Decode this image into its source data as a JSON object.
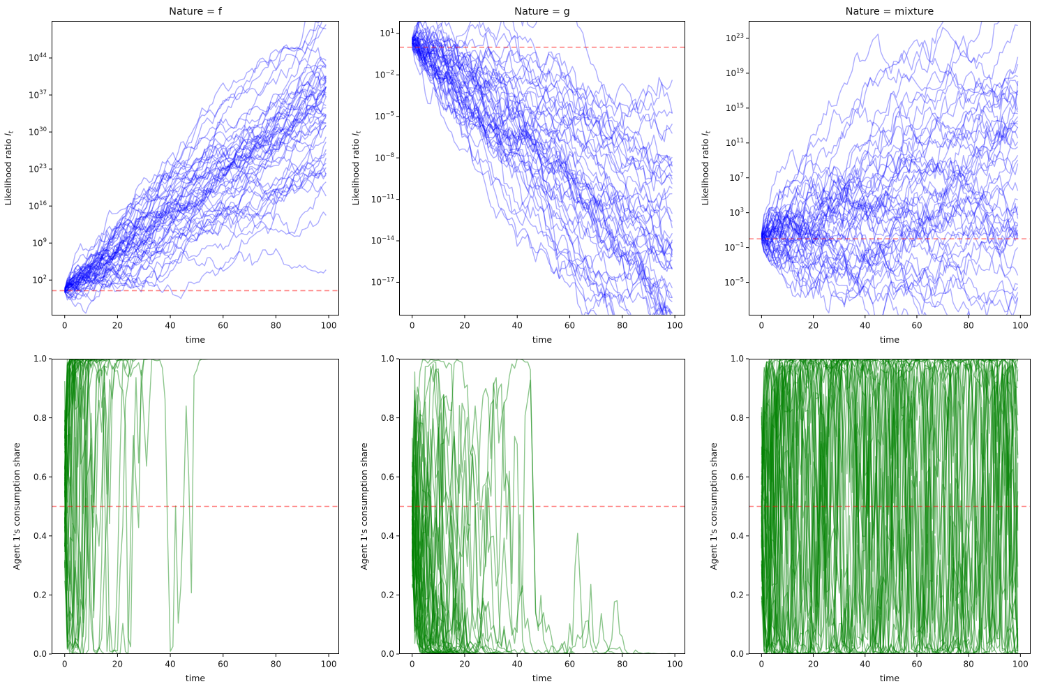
{
  "figure": {
    "background": "#ffffff",
    "rows": 2,
    "cols": 3,
    "text_color": "#111111",
    "spine_color": "#000000"
  },
  "chart_data": [
    {
      "id": "likelihood-f",
      "type": "line",
      "grid": "off",
      "legend": "none",
      "title": "Nature = f",
      "xlabel": "time",
      "ylabel": {
        "prefix": "Likelihood ratio ",
        "math_var": "l",
        "math_sub": "t"
      },
      "x": [
        0,
        99
      ],
      "xlim": [
        -4.95,
        103.95
      ],
      "x_ticks": [
        0,
        20,
        40,
        60,
        80,
        100
      ],
      "y_scale": "log10",
      "y_tick_exponents": [
        2,
        9,
        16,
        23,
        30,
        37,
        44
      ],
      "ylim_log10": [
        -4.7,
        51
      ],
      "ref_line": {
        "value_log10": 0,
        "color": "#ff0000",
        "alpha": 0.5,
        "style": "dashed"
      },
      "n_series": 50,
      "n_points": 100,
      "series_color": "#0000ff",
      "series_alpha": 0.33,
      "ensemble": {
        "seed": 7,
        "start": 0.1,
        "start_jitter": 0.3,
        "drift": 0.36,
        "drift_spread": 0.05,
        "noise": 0.8,
        "mean_revert": 1,
        "transform": "identity"
      },
      "summary": "50 likelihood-ratio paths start near 1 and grow exponentially, ending between ~1e20 and ~1e48 at t=100; red dashed reference at l=1"
    },
    {
      "id": "likelihood-g",
      "type": "line",
      "grid": "off",
      "legend": "none",
      "title": "Nature = g",
      "xlabel": "time",
      "ylabel": {
        "prefix": "Likelihood ratio ",
        "math_var": "l",
        "math_sub": "t"
      },
      "x": [
        0,
        99
      ],
      "xlim": [
        -4.95,
        103.95
      ],
      "x_ticks": [
        0,
        20,
        40,
        60,
        80,
        100
      ],
      "y_scale": "log10",
      "y_tick_exponents": [
        1,
        -2,
        -5,
        -8,
        -11,
        -14,
        -17
      ],
      "ylim_log10": [
        -19.4,
        1.9
      ],
      "ref_line": {
        "value_log10": 0,
        "color": "#ff0000",
        "alpha": 0.5,
        "style": "dashed"
      },
      "n_series": 50,
      "n_points": 100,
      "series_color": "#0000ff",
      "series_alpha": 0.33,
      "ensemble": {
        "seed": 13,
        "start": 0.35,
        "start_jitter": 0.25,
        "drift": -0.16,
        "drift_spread": 0.02,
        "noise": 0.5,
        "mean_revert": 1,
        "transform": "identity"
      },
      "summary": "50 likelihood-ratio paths start near 1 and decay exponentially, ending between ~1e-10 and ~1e-18.5 at t=100; red dashed reference at l=1"
    },
    {
      "id": "likelihood-mixture",
      "type": "line",
      "grid": "off",
      "legend": "none",
      "title": "Nature = mixture",
      "xlabel": "time",
      "ylabel": {
        "prefix": "Likelihood ratio ",
        "math_var": "l",
        "math_sub": "t"
      },
      "x": [
        0,
        99
      ],
      "xlim": [
        -4.95,
        103.95
      ],
      "x_ticks": [
        0,
        20,
        40,
        60,
        80,
        100
      ],
      "y_scale": "log10",
      "y_tick_exponents": [
        23,
        19,
        15,
        11,
        7,
        3,
        -1,
        -5
      ],
      "ylim_log10": [
        -8.8,
        25
      ],
      "ref_line": {
        "value_log10": 0,
        "color": "#ff0000",
        "alpha": 0.5,
        "style": "dashed"
      },
      "n_series": 50,
      "n_points": 100,
      "series_color": "#0000ff",
      "series_alpha": 0.33,
      "ensemble": {
        "seed": 21,
        "start": 0.2,
        "start_jitter": 0.3,
        "drift": 0.08,
        "drift_spread": 0.07,
        "noise": 0.78,
        "mean_revert": 1,
        "transform": "identity"
      },
      "summary": "50 likelihood-ratio paths wander with heterogeneous drift, spanning ~1e-7 up to ~1e23 by t=100; red dashed reference at l=1"
    },
    {
      "id": "share-f",
      "type": "line",
      "grid": "off",
      "legend": "none",
      "title": "",
      "xlabel": "time",
      "ylabel": {
        "prefix": "Agent 1's consumption share",
        "math_var": "",
        "math_sub": ""
      },
      "x": [
        0,
        99
      ],
      "xlim": [
        -4.95,
        103.95
      ],
      "x_ticks": [
        0,
        20,
        40,
        60,
        80,
        100
      ],
      "y_scale": "linear",
      "y_tick_labels": [
        "0.0",
        "0.2",
        "0.4",
        "0.6",
        "0.8",
        "1.0"
      ],
      "y_tick_values": [
        0,
        0.2,
        0.4,
        0.6,
        0.8,
        1.0
      ],
      "ylim": [
        0,
        1
      ],
      "ref_line": {
        "value": 0.5,
        "color": "#ff0000",
        "alpha": 0.5,
        "style": "dashed"
      },
      "n_series": 50,
      "n_points": 100,
      "series_color": "#008000",
      "series_alpha": 0.45,
      "ensemble": {
        "seed": 31,
        "start": 0.1,
        "start_jitter": 0.3,
        "drift": 0.36,
        "drift_spread": 0.05,
        "noise": 0.95,
        "mean_revert": 1,
        "transform": "sigmoid10"
      },
      "summary": "Consumption shares start near 0.5, fluctuate over [0.01,1] for t<30, then all converge to 1.0; red dashed reference at 0.5"
    },
    {
      "id": "share-g",
      "type": "line",
      "grid": "off",
      "legend": "none",
      "title": "",
      "xlabel": "time",
      "ylabel": {
        "prefix": "Agent 1's consumption share",
        "math_var": "",
        "math_sub": ""
      },
      "x": [
        0,
        99
      ],
      "xlim": [
        -4.95,
        103.95
      ],
      "x_ticks": [
        0,
        20,
        40,
        60,
        80,
        100
      ],
      "y_scale": "linear",
      "y_tick_labels": [
        "0.0",
        "0.2",
        "0.4",
        "0.6",
        "0.8",
        "1.0"
      ],
      "y_tick_values": [
        0,
        0.2,
        0.4,
        0.6,
        0.8,
        1.0
      ],
      "ylim": [
        0,
        1
      ],
      "ref_line": {
        "value": 0.5,
        "color": "#ff0000",
        "alpha": 0.5,
        "style": "dashed"
      },
      "n_series": 50,
      "n_points": 100,
      "series_color": "#008000",
      "series_alpha": 0.45,
      "ensemble": {
        "seed": 41,
        "start": -0.05,
        "start_jitter": 0.2,
        "drift": -0.16,
        "drift_spread": 0.03,
        "noise": 0.55,
        "mean_revert": 1,
        "transform": "sigmoid10"
      },
      "summary": "Consumption shares start near 0.5 with early spikes up to ~0.88, then decay; nearly all at 0 by t=50; red dashed reference at 0.5"
    },
    {
      "id": "share-mixture",
      "type": "line",
      "grid": "off",
      "legend": "none",
      "title": "",
      "xlabel": "time",
      "ylabel": {
        "prefix": "Agent 1's consumption share",
        "math_var": "",
        "math_sub": ""
      },
      "x": [
        0,
        99
      ],
      "xlim": [
        -4.95,
        103.95
      ],
      "x_ticks": [
        0,
        20,
        40,
        60,
        80,
        100
      ],
      "y_scale": "linear",
      "y_tick_labels": [
        "0.0",
        "0.2",
        "0.4",
        "0.6",
        "0.8",
        "1.0"
      ],
      "y_tick_values": [
        0,
        0.2,
        0.4,
        0.6,
        0.8,
        1.0
      ],
      "ylim": [
        0,
        1
      ],
      "ref_line": {
        "value": 0.5,
        "color": "#ff0000",
        "alpha": 0.5,
        "style": "dashed"
      },
      "n_series": 50,
      "n_points": 100,
      "series_color": "#008000",
      "series_alpha": 0.45,
      "ensemble": {
        "seed": 51,
        "start": 0.0,
        "start_jitter": 0.3,
        "drift": 0.0,
        "drift_spread": 0.02,
        "noise": 0.95,
        "mean_revert": 0.97,
        "transform": "sigmoid10"
      },
      "summary": "Consumption shares oscillate persistently between 0 and 1 over the whole horizon; red dashed reference at 0.5"
    }
  ]
}
